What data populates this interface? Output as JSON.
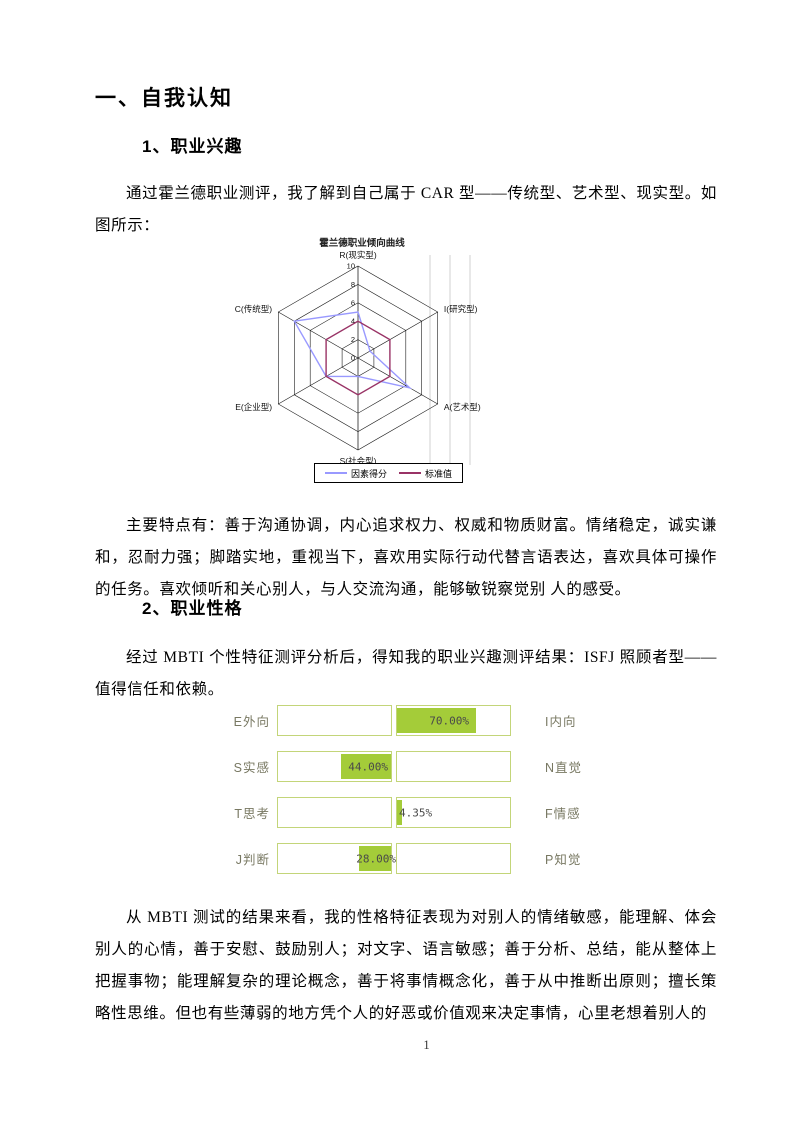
{
  "doc": {
    "h1": "一、自我认知",
    "section1_heading": "1、职业兴趣",
    "para1": "通过霍兰德职业测评，我了解到自己属于 CAR 型——传统型、艺术型、现实型。如图所示：",
    "para2": "主要特点有：善于沟通协调，内心追求权力、权威和物质财富。情绪稳定，诚实谦和，忍耐力强；脚踏实地，重视当下，喜欢用实际行动代替言语表达，喜欢具体可操作的任务。喜欢倾听和关心别人，与人交流沟通，能够敏锐察觉别 人的感受。",
    "section2_heading": "2、职业性格",
    "para3": "经过 MBTI 个性特征测评分析后，得知我的职业兴趣测评结果：ISFJ 照顾者型——值得信任和依赖。",
    "para4": "从 MBTI 测试的结果来看，我的性格特征表现为对别人的情绪敏感，能理解、体会别人的心情，善于安慰、鼓励别人；对文字、语言敏感；善于分析、总结，能从整体上把握事物；能理解复杂的理论概念，善于将事情概念化，善于从中推断出原则；擅长策略性思维。但也有些薄弱的地方凭个人的好恶或价值观来决定事情，心里老想着别人的",
    "page_number": "1"
  },
  "chart_data": [
    {
      "type": "radar",
      "title": "霍兰德职业倾向曲线",
      "categories": [
        "R(现实型)",
        "I(研究型)",
        "A(艺术型)",
        "S(社会型)",
        "E(企业型)",
        "C(传统型)"
      ],
      "series": [
        {
          "name": "因素得分",
          "color": "#9999ff",
          "values": [
            5,
            1.5,
            6.5,
            2,
            4,
            8
          ]
        },
        {
          "name": "标准值",
          "color": "#993366",
          "values": [
            4,
            4,
            4,
            4,
            4,
            4
          ]
        }
      ],
      "rlim": [
        0,
        10
      ],
      "ticks": [
        0,
        2,
        4,
        6,
        8,
        10
      ],
      "grid": true,
      "legend_position": "bottom"
    },
    {
      "type": "bar",
      "subtype": "mbti-paired-horizontal",
      "bar_color": "#a4cc39",
      "box_border_color": "#c3d579",
      "value_unit": "%",
      "rows": [
        {
          "left_label": "E外向",
          "right_label": "I内向",
          "side": "right",
          "value": 70,
          "value_label": "70.00%"
        },
        {
          "left_label": "S实感",
          "right_label": "N直觉",
          "side": "left",
          "value": 44,
          "value_label": "44.00%"
        },
        {
          "left_label": "T思考",
          "right_label": "F情感",
          "side": "right",
          "value": 4.35,
          "value_label": "4.35%"
        },
        {
          "left_label": "J判断",
          "right_label": "P知觉",
          "side": "left",
          "value": 28,
          "value_label": "28.00%"
        }
      ]
    }
  ]
}
